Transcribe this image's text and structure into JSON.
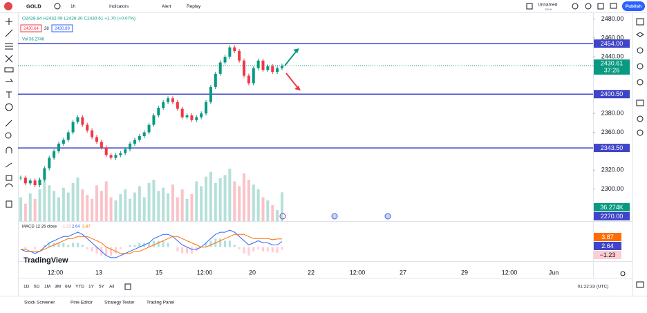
{
  "toolbar": {
    "symbol": "GOLD",
    "interval": "1h",
    "indicators": "Indicators",
    "alert": "Alert",
    "replay": "Replay",
    "layout_name": "Unnamed",
    "layout_status": "Save",
    "publish": "Publish"
  },
  "legend": {
    "ohlc": "O2428.84 H2432.09 L2426.30 C2430.61 +1.70 (+0.07%)",
    "sell": "2430.64",
    "spread": "28",
    "buy": "2430.89",
    "volume": "Vol 36.274K"
  },
  "chart": {
    "ylim": [
      2266,
      2487
    ],
    "yticks": [
      {
        "value": 2480,
        "label": "2480.00"
      },
      {
        "value": 2460,
        "label": "2460.00"
      },
      {
        "value": 2440,
        "label": "2440.00"
      },
      {
        "value": 2380,
        "label": "2380.00"
      },
      {
        "value": 2360,
        "label": "2360.00"
      },
      {
        "value": 2320,
        "label": "2320.00"
      },
      {
        "value": 2300,
        "label": "2300.00"
      }
    ],
    "levels": [
      {
        "value": 2454,
        "label": "2454.00"
      },
      {
        "value": 2400.5,
        "label": "2400.50"
      },
      {
        "value": 2343.5,
        "label": "2343.50"
      }
    ],
    "last_price": 2430.61,
    "countdown": "37:26",
    "volume_label": "36.274K",
    "bottom_label": {
      "value": 2270,
      "label": "2270.00"
    },
    "candles": [
      2312,
      2306,
      2309,
      2304,
      2310,
      2322,
      2333,
      2340,
      2348,
      2352,
      2360,
      2371,
      2376,
      2368,
      2362,
      2355,
      2350,
      2344,
      2336,
      2333,
      2336,
      2338,
      2342,
      2348,
      2352,
      2356,
      2360,
      2368,
      2378,
      2386,
      2392,
      2396,
      2392,
      2385,
      2376,
      2378,
      2373,
      2376,
      2380,
      2392,
      2408,
      2422,
      2434,
      2440,
      2450,
      2446,
      2436,
      2420,
      2412,
      2428,
      2436,
      2426,
      2430,
      2424,
      2428,
      2430.61
    ],
    "volumes": [
      30,
      22,
      35,
      28,
      40,
      52,
      45,
      38,
      30,
      42,
      36,
      48,
      55,
      40,
      33,
      28,
      45,
      38,
      50,
      30,
      26,
      34,
      40,
      28,
      36,
      44,
      30,
      48,
      52,
      38,
      42,
      35,
      46,
      30,
      40,
      28,
      34,
      50,
      44,
      56,
      62,
      48,
      54,
      58,
      66,
      50,
      44,
      60,
      52,
      46,
      40,
      30,
      26,
      20,
      14,
      36.274
    ]
  },
  "macd": {
    "label": "MACD 12 26 close",
    "hist_value": "−1.23",
    "macd_value": "2.64",
    "signal_value": "3.87",
    "hist_text": -1.23,
    "macd_text": 2.64,
    "signal_text": 3.87,
    "ylim": [
      -6,
      9
    ],
    "macd": [
      -1,
      -2,
      -2,
      -3,
      -2,
      0,
      2,
      3,
      4,
      5,
      5,
      6,
      7,
      6,
      4,
      2,
      0,
      -2,
      -4,
      -5,
      -5,
      -4,
      -3,
      -2,
      -1,
      0,
      1,
      2,
      4,
      5,
      6,
      6,
      5,
      3,
      1,
      0,
      -1,
      -1,
      0,
      2,
      4,
      6,
      7,
      7,
      8,
      7,
      5,
      3,
      1,
      2,
      3,
      2,
      2,
      1,
      1,
      2.64
    ],
    "signal": [
      -1,
      -1,
      -2,
      -2,
      -2,
      -1,
      0,
      1,
      2,
      3,
      4,
      4,
      5,
      5,
      5,
      4,
      3,
      2,
      0,
      -1,
      -2,
      -3,
      -3,
      -3,
      -2,
      -2,
      -1,
      0,
      1,
      2,
      3,
      4,
      5,
      5,
      4,
      3,
      2,
      1,
      0,
      0,
      1,
      2,
      3,
      4,
      5,
      6,
      6,
      6,
      5,
      4,
      4,
      4,
      4,
      3.5,
      3.8,
      3.87
    ],
    "histogram": [
      0,
      -1,
      0,
      -1,
      0,
      1,
      2,
      2,
      2,
      2,
      1,
      2,
      2,
      1,
      -1,
      -2,
      -3,
      -4,
      -4,
      -4,
      -3,
      -1,
      0,
      1,
      1,
      2,
      2,
      2,
      3,
      3,
      3,
      2,
      0,
      -2,
      -3,
      -3,
      -3,
      -2,
      0,
      2,
      3,
      4,
      4,
      3,
      3,
      1,
      -1,
      -3,
      -4,
      -2,
      -1,
      -2,
      -2,
      -2.5,
      -2.8,
      -1.23
    ]
  },
  "time_axis": [
    "12:00",
    "13",
    "15",
    "12:00",
    "20",
    "22",
    "12:00",
    "27",
    "29",
    "12:00",
    "Jun"
  ],
  "logo": "TradingView",
  "ranges": [
    "1D",
    "5D",
    "1M",
    "3M",
    "6M",
    "YTD",
    "1Y",
    "5Y",
    "All"
  ],
  "clock": "01:22:33 (UTC)",
  "tabs": [
    "Stock Screener",
    "Pine Editor",
    "Strategy Tester",
    "Trading Panel"
  ]
}
